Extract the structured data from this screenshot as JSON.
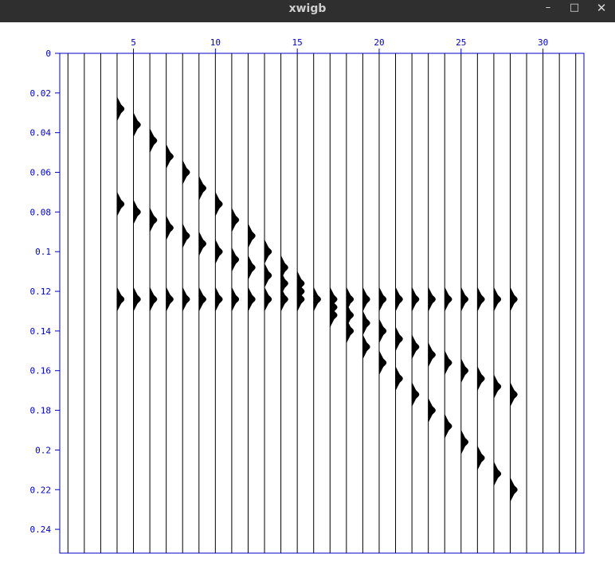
{
  "window": {
    "title": "xwigb",
    "minimize_label": "–",
    "maximize_label": "□",
    "close_label": "✕"
  },
  "colors": {
    "axis": "#0000cc",
    "trace": "#000000",
    "titlebar": "#2f2f2f"
  },
  "chart_data": {
    "type": "seismic-wiggle",
    "title": "",
    "xlabel": "",
    "ylabel": "",
    "trace_count": 32,
    "xlim": [
      0.5,
      32.5
    ],
    "ylim": [
      0,
      0.252
    ],
    "x_ticks": [
      {
        "value": 5,
        "label": "5"
      },
      {
        "value": 10,
        "label": "10"
      },
      {
        "value": 15,
        "label": "15"
      },
      {
        "value": 20,
        "label": "20"
      },
      {
        "value": 25,
        "label": "25"
      },
      {
        "value": 30,
        "label": "30"
      }
    ],
    "y_ticks": [
      {
        "value": 0,
        "label": "0"
      },
      {
        "value": 0.02,
        "label": "0.02"
      },
      {
        "value": 0.04,
        "label": "0.04"
      },
      {
        "value": 0.06,
        "label": "0.06"
      },
      {
        "value": 0.08,
        "label": "0.08"
      },
      {
        "value": 0.1,
        "label": "0.1"
      },
      {
        "value": 0.12,
        "label": "0.12"
      },
      {
        "value": 0.14,
        "label": "0.14"
      },
      {
        "value": 0.16,
        "label": "0.16"
      },
      {
        "value": 0.18,
        "label": "0.18"
      },
      {
        "value": 0.2,
        "label": "0.2"
      },
      {
        "value": 0.22,
        "label": "0.22"
      },
      {
        "value": 0.24,
        "label": "0.24"
      }
    ],
    "series": [
      {
        "events": [
          {
            "trace": 4,
            "time": 0.028
          },
          {
            "trace": 5,
            "time": 0.036
          },
          {
            "trace": 6,
            "time": 0.044
          },
          {
            "trace": 7,
            "time": 0.052
          },
          {
            "trace": 8,
            "time": 0.06
          },
          {
            "trace": 9,
            "time": 0.068
          },
          {
            "trace": 10,
            "time": 0.076
          },
          {
            "trace": 11,
            "time": 0.084
          },
          {
            "trace": 12,
            "time": 0.092
          },
          {
            "trace": 13,
            "time": 0.1
          },
          {
            "trace": 14,
            "time": 0.108
          },
          {
            "trace": 15,
            "time": 0.116
          }
        ]
      },
      {
        "events": [
          {
            "trace": 4,
            "time": 0.076
          },
          {
            "trace": 5,
            "time": 0.08
          },
          {
            "trace": 6,
            "time": 0.084
          },
          {
            "trace": 7,
            "time": 0.088
          },
          {
            "trace": 8,
            "time": 0.092
          },
          {
            "trace": 9,
            "time": 0.096
          },
          {
            "trace": 10,
            "time": 0.1
          },
          {
            "trace": 11,
            "time": 0.104
          },
          {
            "trace": 12,
            "time": 0.108
          },
          {
            "trace": 13,
            "time": 0.112
          },
          {
            "trace": 14,
            "time": 0.116
          },
          {
            "trace": 15,
            "time": 0.12
          }
        ]
      },
      {
        "events": [
          {
            "trace": 4,
            "time": 0.124
          },
          {
            "trace": 5,
            "time": 0.124
          },
          {
            "trace": 6,
            "time": 0.124
          },
          {
            "trace": 7,
            "time": 0.124
          },
          {
            "trace": 8,
            "time": 0.124
          },
          {
            "trace": 9,
            "time": 0.124
          },
          {
            "trace": 10,
            "time": 0.124
          },
          {
            "trace": 11,
            "time": 0.124
          },
          {
            "trace": 12,
            "time": 0.124
          },
          {
            "trace": 13,
            "time": 0.124
          },
          {
            "trace": 14,
            "time": 0.124
          },
          {
            "trace": 15,
            "time": 0.124
          },
          {
            "trace": 16,
            "time": 0.124
          },
          {
            "trace": 17,
            "time": 0.124
          },
          {
            "trace": 18,
            "time": 0.124
          },
          {
            "trace": 19,
            "time": 0.124
          },
          {
            "trace": 20,
            "time": 0.124
          },
          {
            "trace": 21,
            "time": 0.124
          },
          {
            "trace": 22,
            "time": 0.124
          },
          {
            "trace": 23,
            "time": 0.124
          },
          {
            "trace": 24,
            "time": 0.124
          },
          {
            "trace": 25,
            "time": 0.124
          },
          {
            "trace": 26,
            "time": 0.124
          },
          {
            "trace": 27,
            "time": 0.124
          },
          {
            "trace": 28,
            "time": 0.124
          }
        ]
      },
      {
        "events": [
          {
            "trace": 17,
            "time": 0.128
          },
          {
            "trace": 18,
            "time": 0.132
          },
          {
            "trace": 19,
            "time": 0.136
          },
          {
            "trace": 20,
            "time": 0.14
          },
          {
            "trace": 21,
            "time": 0.144
          },
          {
            "trace": 22,
            "time": 0.148
          },
          {
            "trace": 23,
            "time": 0.152
          },
          {
            "trace": 24,
            "time": 0.156
          },
          {
            "trace": 25,
            "time": 0.16
          },
          {
            "trace": 26,
            "time": 0.164
          },
          {
            "trace": 27,
            "time": 0.168
          },
          {
            "trace": 28,
            "time": 0.172
          }
        ]
      },
      {
        "events": [
          {
            "trace": 17,
            "time": 0.132
          },
          {
            "trace": 18,
            "time": 0.14
          },
          {
            "trace": 19,
            "time": 0.148
          },
          {
            "trace": 20,
            "time": 0.156
          },
          {
            "trace": 21,
            "time": 0.164
          },
          {
            "trace": 22,
            "time": 0.172
          },
          {
            "trace": 23,
            "time": 0.18
          },
          {
            "trace": 24,
            "time": 0.188
          },
          {
            "trace": 25,
            "time": 0.196
          },
          {
            "trace": 26,
            "time": 0.204
          },
          {
            "trace": 27,
            "time": 0.212
          },
          {
            "trace": 28,
            "time": 0.22
          }
        ]
      }
    ],
    "grid": false,
    "legend": "none"
  }
}
